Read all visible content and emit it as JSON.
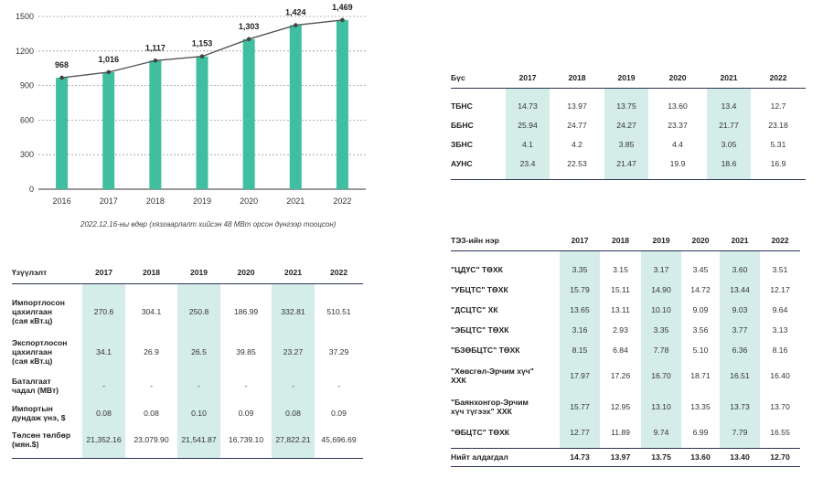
{
  "chart_data": {
    "type": "bar+line",
    "categories": [
      "2016",
      "2017",
      "2018",
      "2019",
      "2020",
      "2021",
      "2022"
    ],
    "values": [
      968,
      1016,
      1117,
      1153,
      1303,
      1424,
      1469
    ],
    "value_labels": [
      "968",
      "1,016",
      "1,117",
      "1,153",
      "1,303",
      "1,424",
      "1,469"
    ],
    "y_ticks": [
      "0",
      "300",
      "600",
      "900",
      "1200",
      "1500"
    ],
    "ylim": [
      0,
      1500
    ],
    "grid": true,
    "bar_color": "#3fbf9f",
    "line_color": "#555555"
  },
  "chart_note": "2022.12.16-ны өдөр (хязгаарлалт хийсэн 48 МВт орсон дүнгээр тооцсон)",
  "zone_table": {
    "header": [
      "Бүс",
      "2017",
      "2018",
      "2019",
      "2020",
      "2021",
      "2022"
    ],
    "rows": [
      [
        "ТБНС",
        "14.73",
        "13.97",
        "13.75",
        "13.60",
        "13.4",
        "12.7"
      ],
      [
        "ББНС",
        "25.94",
        "24.77",
        "24.27",
        "23.37",
        "21.77",
        "23.18"
      ],
      [
        "ЗБНС",
        "4.1",
        "4.2",
        "3.85",
        "4.4",
        "3.05",
        "5.31"
      ],
      [
        "АУНС",
        "23.4",
        "22.53",
        "21.47",
        "19.9",
        "18.6",
        "16.9"
      ]
    ]
  },
  "import_table": {
    "header": [
      "Үзүүлэлт",
      "2017",
      "2018",
      "2019",
      "2020",
      "2021",
      "2022"
    ],
    "rows": [
      [
        [
          "Импортлосон",
          "цахилгаан",
          "(сая кВт.ц)"
        ],
        "270.6",
        "304.1",
        "250.8",
        "186.99",
        "332.81",
        "510.51"
      ],
      [
        [
          "Экспортлосон",
          "цахилгаан",
          "(сая кВт.ц)"
        ],
        "34.1",
        "26.9",
        "26.5",
        "39.85",
        "23.27",
        "37.29"
      ],
      [
        [
          "Баталгаат",
          "чадал (МВт)"
        ],
        "-",
        "-",
        "-",
        "-",
        "-",
        "-"
      ],
      [
        [
          "Импортын",
          "дундаж үнэ, $"
        ],
        "0.08",
        "0.08",
        "0.10",
        "0.09",
        "0.08",
        "0.09"
      ],
      [
        [
          "Төлсөн төлбөр",
          "(мян.$)"
        ],
        "21,352.16",
        "23,079.90",
        "21,541.87",
        "16,739.10",
        "27,822.21",
        "45,696.69"
      ]
    ]
  },
  "tpp_table": {
    "header": [
      "ТЭЗ-ийн нэр",
      "2017",
      "2018",
      "2019",
      "2020",
      "2021",
      "2022"
    ],
    "rows": [
      [
        [
          "\"ЦДҮС\" ТӨХК"
        ],
        "3.35",
        "3.15",
        "3.17",
        "3.45",
        "3.60",
        "3.51"
      ],
      [
        [
          "\"УБЦТС\" ТӨХК"
        ],
        "15.79",
        "15.11",
        "14.90",
        "14.72",
        "13.44",
        "12.17"
      ],
      [
        [
          "\"ДСЦТС\" ХК"
        ],
        "13.65",
        "13.11",
        "10.10",
        "9.09",
        "9.03",
        "9.64"
      ],
      [
        [
          "\"ЭБЦТС\" ТӨХК"
        ],
        "3.16",
        "2.93",
        "3.35",
        "3.56",
        "3.77",
        "3.13"
      ],
      [
        [
          "\"БЗӨБЦТС\" ТӨХК"
        ],
        "8.15",
        "6.84",
        "7.78",
        "5.10",
        "6.36",
        "8.16"
      ],
      [
        [
          "\"Хөвсгөл-Эрчим хүч\"",
          "ХХК"
        ],
        "17.97",
        "17.26",
        "16.70",
        "18.71",
        "16.51",
        "16.40"
      ],
      [
        [
          "\"Баянхонгор-Эрчим",
          "хүч түгээх\" ХХК"
        ],
        "15.77",
        "12.95",
        "13.10",
        "13.35",
        "13.73",
        "13.70"
      ],
      [
        [
          "\"ӨБЦТС\" ТӨХК"
        ],
        "12.77",
        "11.89",
        "9.74",
        "6.99",
        "7.79",
        "16.55"
      ]
    ],
    "total": [
      "Нийт алдагдал",
      "14.73",
      "13.97",
      "13.75",
      "13.60",
      "13.40",
      "12.70"
    ]
  }
}
